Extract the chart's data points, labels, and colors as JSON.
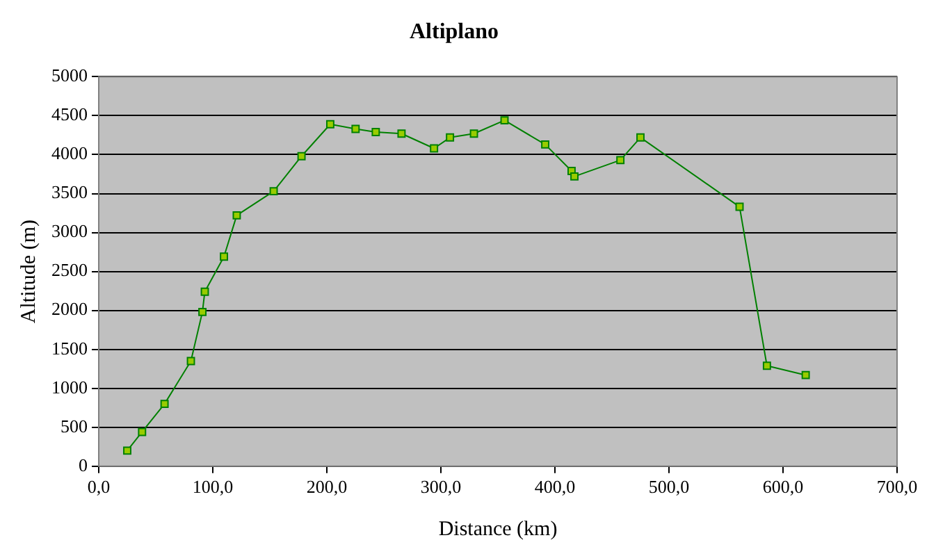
{
  "chart_data": {
    "type": "line",
    "title": "Altiplano",
    "xlabel": "Distance (km)",
    "ylabel": "Altitude (m)",
    "x": [
      25,
      38,
      57.7,
      80.8,
      90.9,
      93,
      109.8,
      121,
      153.4,
      177.8,
      203,
      225.2,
      242.9,
      265.5,
      294,
      308,
      329,
      355.8,
      391.5,
      414.6,
      417.1,
      457.4,
      475,
      561.9,
      585.9,
      619.9
    ],
    "series": [
      {
        "color": "#008000",
        "values": [
          200,
          440,
          800,
          1350,
          1980,
          2240,
          2690,
          3220,
          3530,
          3980,
          4390,
          4330,
          4290,
          4270,
          4080,
          4220,
          4270,
          4440,
          4130,
          3790,
          3720,
          3930,
          4220,
          3330,
          1290,
          1170
        ]
      }
    ],
    "xlim": [
      0,
      700
    ],
    "xticks": [
      {
        "value": 0,
        "label": "0,0"
      },
      {
        "value": 100,
        "label": "100,0"
      },
      {
        "value": 200,
        "label": "200,0"
      },
      {
        "value": 300,
        "label": "300,0"
      },
      {
        "value": 400,
        "label": "400,0"
      },
      {
        "value": 500,
        "label": "500,0"
      },
      {
        "value": 600,
        "label": "600,0"
      },
      {
        "value": 700,
        "label": "700,0"
      }
    ],
    "ylim": [
      0,
      5000
    ],
    "yticks": [
      0,
      500,
      1000,
      1500,
      2000,
      2500,
      3000,
      3500,
      4000,
      4500,
      5000
    ],
    "grid": "y",
    "legend": false,
    "marker": "square",
    "line_style": "solid"
  }
}
